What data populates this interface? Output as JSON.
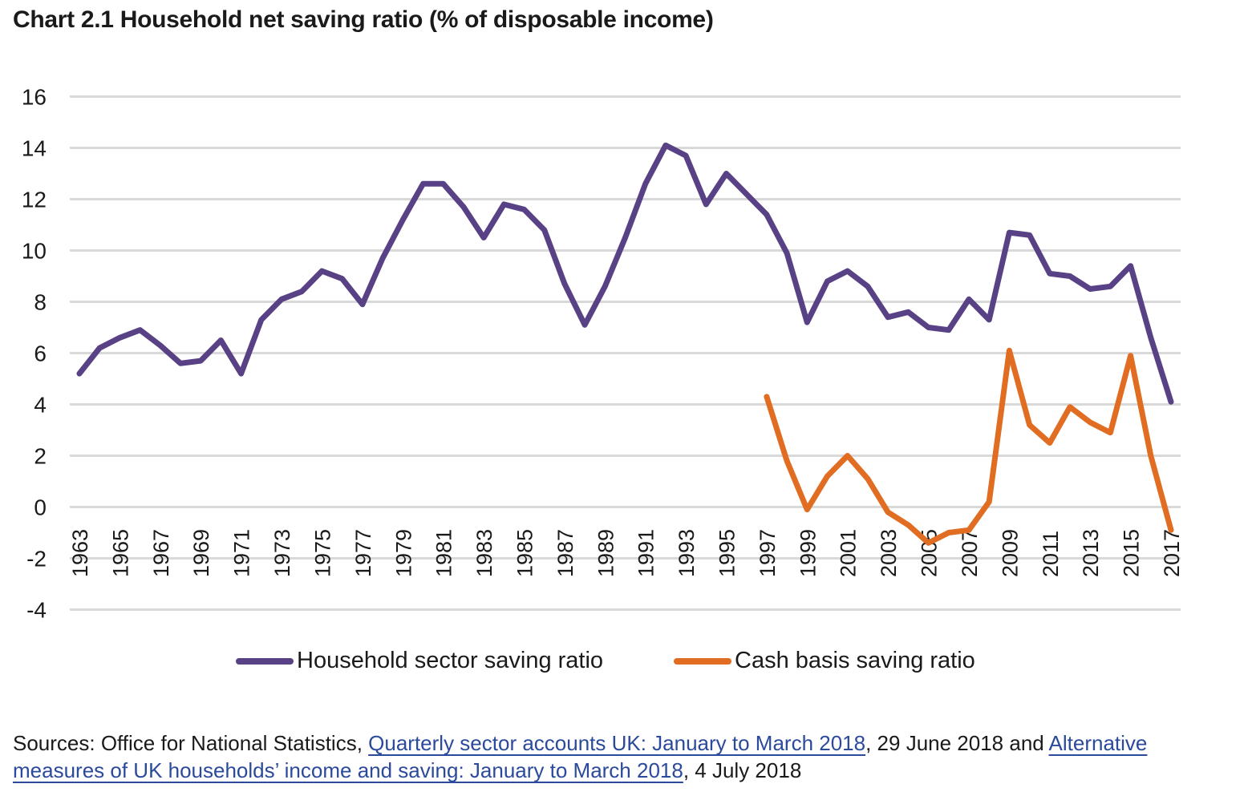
{
  "title": "Chart 2.1 Household net saving ratio (% of disposable income)",
  "colors": {
    "household": "#584185",
    "cash": "#e06d22",
    "grid": "#d9d9d9",
    "link": "#2b4a9b"
  },
  "legend": {
    "household_label": "Household sector saving ratio",
    "cash_label": "Cash basis saving ratio"
  },
  "sources": {
    "prefix": "Sources: Office for National Statistics, ",
    "link1": "Quarterly sector accounts UK: January to March 2018",
    "mid": ", 29 June 2018 and ",
    "link2": "Alternative measures of UK households’ income and saving: January to March 2018",
    "suffix": ", 4 July 2018"
  },
  "chart_data": {
    "type": "line",
    "title": "Chart 2.1 Household net saving ratio (% of disposable income)",
    "xlabel": "",
    "ylabel": "",
    "ylim": [
      -4,
      16
    ],
    "yticks": [
      16,
      14,
      12,
      10,
      8,
      6,
      4,
      2,
      0,
      -2,
      -4
    ],
    "grid": true,
    "legend_position": "bottom",
    "x": [
      1963,
      1964,
      1965,
      1966,
      1967,
      1968,
      1969,
      1970,
      1971,
      1972,
      1973,
      1974,
      1975,
      1976,
      1977,
      1978,
      1979,
      1980,
      1981,
      1982,
      1983,
      1984,
      1985,
      1986,
      1987,
      1988,
      1989,
      1990,
      1991,
      1992,
      1993,
      1994,
      1995,
      1996,
      1997,
      1998,
      1999,
      2000,
      2001,
      2002,
      2003,
      2004,
      2005,
      2006,
      2007,
      2008,
      2009,
      2010,
      2011,
      2012,
      2013,
      2014,
      2015,
      2016,
      2017
    ],
    "xtick_labels": [
      "1963",
      "1965",
      "1967",
      "1969",
      "1971",
      "1973",
      "1975",
      "1977",
      "1979",
      "1981",
      "1983",
      "1985",
      "1987",
      "1989",
      "1991",
      "1993",
      "1995",
      "1997",
      "1999",
      "2001",
      "2003",
      "2005",
      "2007",
      "2009",
      "2011",
      "2013",
      "2015",
      "2017"
    ],
    "series": [
      {
        "name": "Household sector saving ratio",
        "color": "#584185",
        "values": [
          5.2,
          6.2,
          6.6,
          6.9,
          6.3,
          5.6,
          5.7,
          6.5,
          5.2,
          7.3,
          8.1,
          8.4,
          9.2,
          8.9,
          7.9,
          9.7,
          11.2,
          12.6,
          12.6,
          11.7,
          10.5,
          11.8,
          11.6,
          10.8,
          8.7,
          7.1,
          8.6,
          10.5,
          12.6,
          14.1,
          13.7,
          11.8,
          13.0,
          12.2,
          11.4,
          9.9,
          7.2,
          8.8,
          9.2,
          8.6,
          7.4,
          7.6,
          7.0,
          6.9,
          8.1,
          7.3,
          10.7,
          10.6,
          9.1,
          9.0,
          8.5,
          8.6,
          9.4,
          6.6,
          4.1
        ]
      },
      {
        "name": "Cash basis saving ratio",
        "color": "#e06d22",
        "values": [
          null,
          null,
          null,
          null,
          null,
          null,
          null,
          null,
          null,
          null,
          null,
          null,
          null,
          null,
          null,
          null,
          null,
          null,
          null,
          null,
          null,
          null,
          null,
          null,
          null,
          null,
          null,
          null,
          null,
          null,
          null,
          null,
          null,
          null,
          4.3,
          1.8,
          -0.1,
          1.2,
          2.0,
          1.1,
          -0.2,
          -0.7,
          -1.4,
          -1.0,
          -0.9,
          0.2,
          6.1,
          3.2,
          2.5,
          3.9,
          3.3,
          2.9,
          5.9,
          2.0,
          -0.9
        ]
      }
    ]
  }
}
